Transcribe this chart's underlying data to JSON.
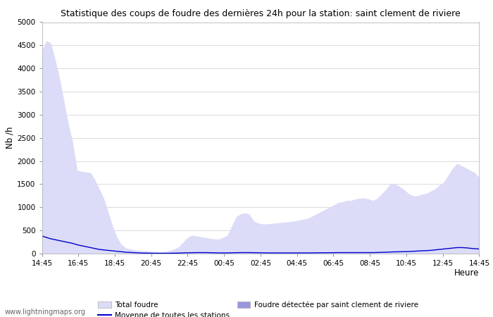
{
  "title": "Statistique des coups de foudre des dernières 24h pour la station: saint clement de riviere",
  "xlabel": "Heure",
  "ylabel": "Nb /h",
  "xlabels": [
    "14:45",
    "16:45",
    "18:45",
    "20:45",
    "22:45",
    "00:45",
    "02:45",
    "04:45",
    "06:45",
    "08:45",
    "10:45",
    "12:45",
    "14:45"
  ],
  "ylim": [
    0,
    5000
  ],
  "yticks": [
    0,
    500,
    1000,
    1500,
    2000,
    2500,
    3000,
    3500,
    4000,
    4500,
    5000
  ],
  "color_total": "#dcdcf8",
  "color_local": "#9898e0",
  "color_mean": "#0000cc",
  "watermark": "www.lightningmaps.org",
  "legend_total": "Total foudre",
  "legend_mean": "Moyenne de toutes les stations",
  "legend_local": "Foudre détectée par saint clement de riviere",
  "total_foudre": [
    4400,
    4600,
    4550,
    4200,
    3800,
    3300,
    2800,
    2400,
    1800,
    1780,
    1760,
    1750,
    1600,
    1400,
    1200,
    900,
    600,
    350,
    200,
    120,
    100,
    80,
    70,
    60,
    55,
    50,
    45,
    40,
    50,
    70,
    100,
    150,
    250,
    350,
    400,
    380,
    360,
    350,
    330,
    320,
    310,
    350,
    400,
    600,
    800,
    860,
    880,
    850,
    700,
    660,
    640,
    640,
    650,
    660,
    670,
    680,
    690,
    700,
    720,
    740,
    760,
    800,
    850,
    900,
    950,
    1000,
    1050,
    1100,
    1120,
    1150,
    1150,
    1180,
    1200,
    1200,
    1180,
    1150,
    1200,
    1300,
    1400,
    1520,
    1500,
    1450,
    1380,
    1300,
    1250,
    1250,
    1280,
    1300,
    1350,
    1400,
    1480,
    1550,
    1700,
    1850,
    1950,
    1900,
    1850,
    1800,
    1750,
    1650
  ],
  "local_foudre": [
    0,
    0,
    0,
    0,
    0,
    0,
    0,
    0,
    0,
    0,
    0,
    0,
    0,
    0,
    0,
    0,
    0,
    0,
    0,
    0,
    0,
    0,
    0,
    0,
    0,
    0,
    0,
    0,
    0,
    0,
    0,
    0,
    0,
    0,
    0,
    0,
    0,
    0,
    0,
    0,
    0,
    0,
    0,
    0,
    0,
    0,
    0,
    0,
    0,
    0,
    0,
    0,
    0,
    0,
    0,
    0,
    0,
    0,
    0,
    0,
    0,
    0,
    0,
    0,
    0,
    0,
    0,
    0,
    0,
    0,
    0,
    0,
    0,
    0,
    0,
    0,
    0,
    0,
    0,
    0,
    0,
    0,
    0,
    0,
    0,
    0,
    0,
    0,
    0,
    0,
    0,
    0,
    0,
    0,
    0,
    0,
    0,
    0,
    0,
    0
  ],
  "mean_line": [
    380,
    350,
    320,
    300,
    280,
    260,
    240,
    220,
    190,
    170,
    150,
    130,
    110,
    90,
    80,
    70,
    60,
    50,
    40,
    30,
    25,
    20,
    15,
    12,
    10,
    8,
    7,
    7,
    7,
    8,
    10,
    12,
    15,
    18,
    20,
    22,
    22,
    22,
    20,
    18,
    15,
    15,
    15,
    18,
    20,
    22,
    22,
    22,
    20,
    18,
    17,
    16,
    15,
    15,
    15,
    15,
    15,
    15,
    15,
    15,
    15,
    16,
    17,
    18,
    18,
    20,
    20,
    22,
    22,
    22,
    22,
    22,
    22,
    22,
    22,
    22,
    25,
    28,
    30,
    35,
    38,
    40,
    42,
    45,
    50,
    55,
    60,
    65,
    70,
    80,
    90,
    100,
    110,
    120,
    130,
    130,
    125,
    115,
    105,
    100
  ]
}
